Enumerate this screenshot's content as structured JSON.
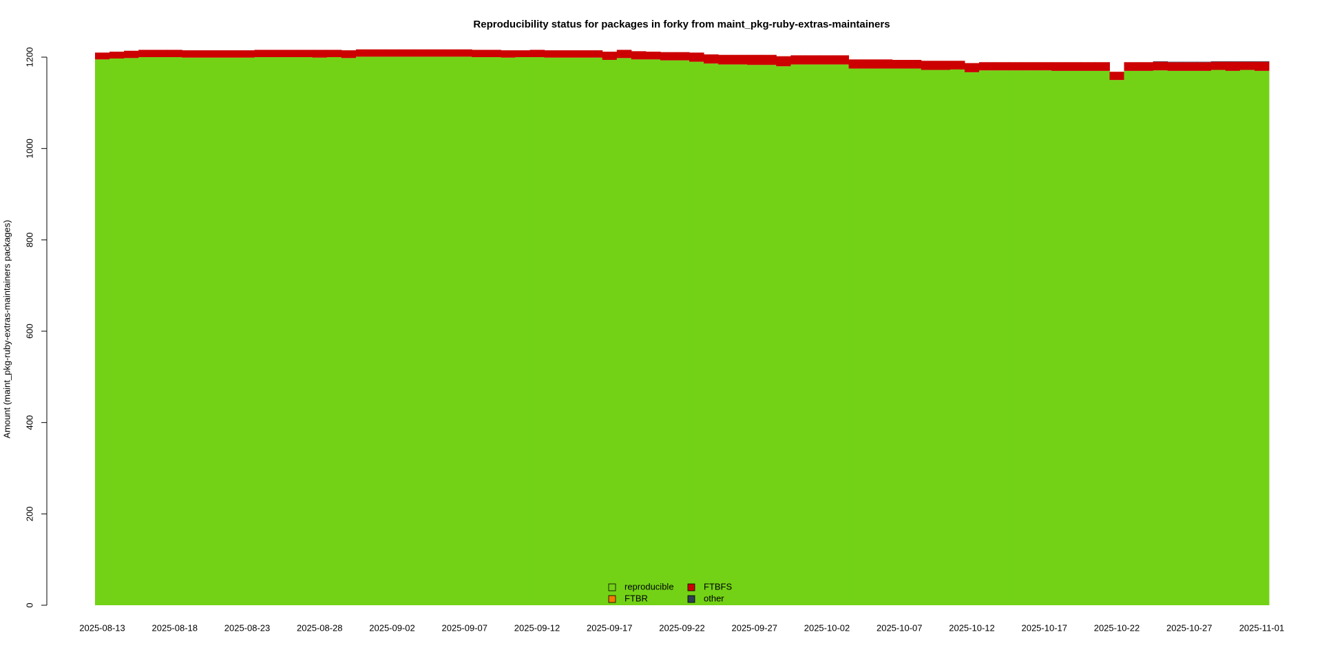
{
  "chart_data": {
    "type": "stacked_bar",
    "title": "Reproducibility status for packages in forky from maint_pkg-ruby-extras-maintainers",
    "y_label": "Amount (maint_pkg-ruby-extras-maintainers packages)",
    "categories": [
      "2025-08-13",
      null,
      null,
      null,
      null,
      "2025-08-18",
      null,
      null,
      null,
      null,
      "2025-08-23",
      null,
      null,
      null,
      null,
      "2025-08-28",
      null,
      null,
      null,
      null,
      "2025-09-02",
      null,
      null,
      null,
      null,
      "2025-09-07",
      null,
      null,
      null,
      null,
      "2025-09-12",
      null,
      null,
      null,
      null,
      "2025-09-17",
      null,
      null,
      null,
      null,
      "2025-09-22",
      null,
      null,
      null,
      null,
      "2025-09-27",
      null,
      null,
      null,
      null,
      "2025-10-02",
      null,
      null,
      null,
      null,
      "2025-10-07",
      null,
      null,
      null,
      null,
      "2025-10-12",
      null,
      null,
      null,
      null,
      "2025-10-17",
      null,
      null,
      null,
      null,
      "2025-10-22",
      null,
      null,
      null,
      null,
      "2025-10-27",
      null,
      null,
      null,
      null,
      "2025-11-01"
    ],
    "series": [
      {
        "name": "reproducible",
        "color": "#73d216",
        "values": [
          1195,
          1197,
          1198,
          1200,
          1200,
          1200,
          1199,
          1199,
          1199,
          1199,
          1199,
          1200,
          1200,
          1200,
          1200,
          1199,
          1200,
          1198,
          1201,
          1201,
          1201,
          1201,
          1201,
          1201,
          1201,
          1201,
          1200,
          1200,
          1199,
          1200,
          1200,
          1199,
          1199,
          1199,
          1199,
          1194,
          1198,
          1195,
          1195,
          1193,
          1193,
          1190,
          1186,
          1184,
          1184,
          1183,
          1183,
          1180,
          1184,
          1184,
          1184,
          1184,
          1175,
          1175,
          1175,
          1175,
          1175,
          1172,
          1172,
          1173,
          1167,
          1171,
          1171,
          1171,
          1171,
          1171,
          1170,
          1170,
          1170,
          1170,
          1150,
          1170,
          1170,
          1171,
          1170,
          1170,
          1170,
          1172,
          1170,
          1172,
          1170
        ]
      },
      {
        "name": "FTBR",
        "color": "#f57900",
        "values": [
          0,
          0,
          0,
          0,
          0,
          0,
          0,
          0,
          0,
          0,
          0,
          0,
          0,
          0,
          0,
          0,
          0,
          0,
          0,
          0,
          0,
          0,
          0,
          0,
          0,
          0,
          0,
          0,
          0,
          0,
          0,
          0,
          0,
          0,
          0,
          0,
          0,
          0,
          0,
          0,
          0,
          0,
          0,
          0,
          0,
          0,
          0,
          0,
          0,
          0,
          0,
          0,
          0,
          0,
          0,
          0,
          0,
          0,
          0,
          0,
          0,
          0,
          0,
          0,
          0,
          0,
          0,
          0,
          0,
          0,
          0,
          0,
          0,
          0,
          0,
          0,
          0,
          0,
          0,
          0,
          0
        ]
      },
      {
        "name": "FTBFS",
        "color": "#cc0000",
        "values": [
          15,
          15,
          16,
          16,
          16,
          16,
          16,
          16,
          16,
          16,
          16,
          16,
          16,
          16,
          16,
          17,
          16,
          17,
          16,
          16,
          16,
          16,
          16,
          16,
          16,
          16,
          16,
          16,
          16,
          15,
          16,
          16,
          16,
          16,
          16,
          18,
          18,
          18,
          17,
          18,
          18,
          20,
          20,
          21,
          21,
          22,
          22,
          22,
          20,
          20,
          20,
          20,
          20,
          20,
          20,
          19,
          19,
          20,
          20,
          19,
          20,
          18,
          18,
          18,
          18,
          18,
          19,
          19,
          19,
          19,
          18,
          19,
          19,
          19,
          19,
          19,
          19,
          18,
          20,
          18,
          20
        ]
      },
      {
        "name": "other",
        "color": "#2e3f54",
        "values": [
          0,
          0,
          0,
          0,
          0,
          0,
          0,
          0,
          0,
          0,
          0,
          0,
          0,
          0,
          0,
          0,
          0,
          0,
          0,
          0,
          0,
          0,
          0,
          0,
          0,
          0,
          0,
          0,
          0,
          0,
          0,
          0,
          0,
          0,
          0,
          0,
          0,
          0,
          0,
          0,
          0,
          0,
          0,
          0,
          0,
          0,
          0,
          0,
          0,
          0,
          0,
          0,
          0,
          0,
          0,
          0,
          0,
          0,
          0,
          0,
          0,
          0,
          0,
          0,
          0,
          0,
          0,
          0,
          0,
          0,
          0,
          0,
          0,
          1,
          1,
          1,
          1,
          1,
          1,
          1,
          1
        ]
      }
    ],
    "ylim": [
      0,
      1200
    ],
    "yticks": [
      0,
      200,
      400,
      600,
      800,
      1000,
      1200
    ]
  }
}
